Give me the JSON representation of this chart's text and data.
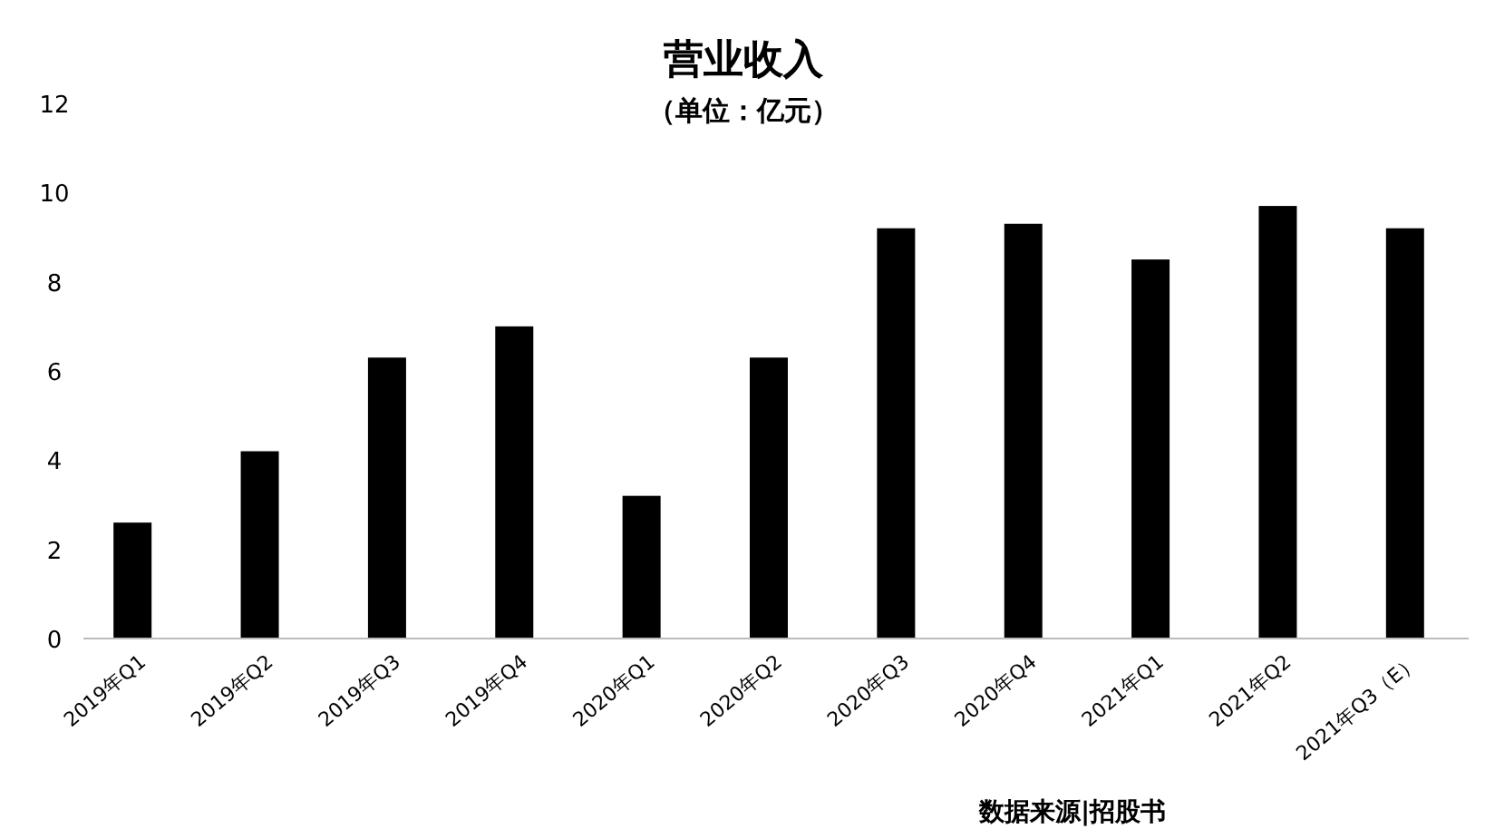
{
  "chart_data": {
    "type": "bar",
    "title": "营业收入",
    "subtitle": "（单位：亿元）",
    "categories": [
      "2019年Q1",
      "2019年Q2",
      "2019年Q3",
      "2019年Q4",
      "2020年Q1",
      "2020年Q2",
      "2020年Q3",
      "2020年Q4",
      "2021年Q1",
      "2021年Q2",
      "2021年Q3（E）"
    ],
    "values": [
      2.6,
      4.2,
      6.3,
      7.0,
      3.2,
      6.3,
      9.2,
      9.3,
      8.5,
      9.7,
      9.2
    ],
    "color": "#000000",
    "ylim": [
      0,
      12
    ],
    "yticks": [
      0,
      2,
      4,
      6,
      8,
      10,
      12
    ],
    "grid": false,
    "annotations": [
      "数据来源|招股书"
    ]
  }
}
